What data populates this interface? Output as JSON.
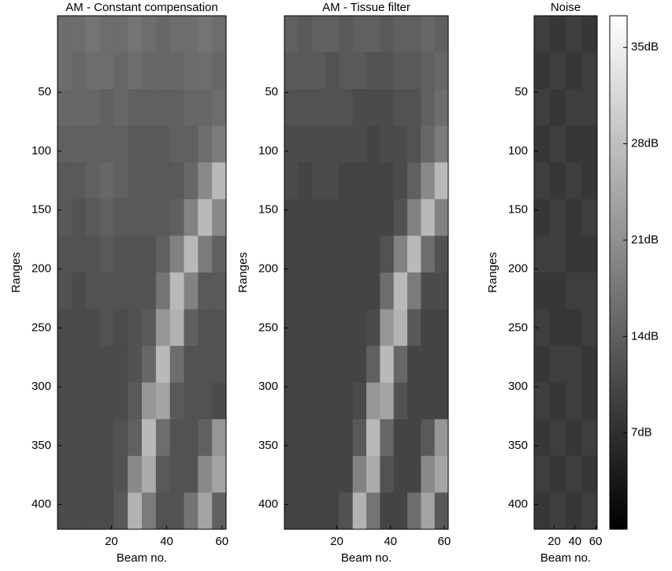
{
  "chart_data": [
    {
      "type": "heatmap",
      "title": "AM - Constant compensation",
      "xlabel": "Beam no.",
      "ylabel": "Ranges",
      "xlim": [
        0.5,
        61.5
      ],
      "ylim": [
        -15,
        421
      ],
      "y_reversed": true,
      "xticks": [
        20,
        40,
        60
      ],
      "yticks": [
        50,
        100,
        150,
        200,
        250,
        300,
        350,
        400
      ],
      "colormap": "gray",
      "clim": [
        0,
        37.3
      ],
      "z": [
        [
          16,
          16,
          17,
          16,
          16,
          17,
          16,
          15,
          16,
          16,
          17,
          16
        ],
        [
          16,
          15,
          16,
          16,
          15,
          16,
          15,
          15,
          15,
          16,
          16,
          15
        ],
        [
          15,
          15,
          15,
          14,
          15,
          14,
          14,
          14,
          14,
          15,
          15,
          16
        ],
        [
          14,
          14,
          14,
          14,
          14,
          13,
          13,
          13,
          14,
          14,
          16,
          18
        ],
        [
          13,
          13,
          14,
          15,
          14,
          13,
          13,
          13,
          13,
          15,
          20,
          27
        ],
        [
          13,
          12,
          13,
          14,
          13,
          13,
          13,
          13,
          14,
          19,
          27,
          20
        ],
        [
          12,
          12,
          12,
          13,
          12,
          12,
          12,
          14,
          19,
          27,
          18,
          14
        ],
        [
          12,
          11,
          12,
          12,
          12,
          12,
          12,
          17,
          27,
          19,
          13,
          13
        ],
        [
          11,
          11,
          11,
          12,
          11,
          12,
          13,
          22,
          26,
          14,
          12,
          12
        ],
        [
          11,
          11,
          11,
          11,
          11,
          12,
          15,
          27,
          16,
          12,
          12,
          12
        ],
        [
          11,
          11,
          11,
          11,
          11,
          13,
          22,
          24,
          13,
          12,
          12,
          11
        ],
        [
          11,
          11,
          11,
          11,
          12,
          14,
          27,
          16,
          12,
          12,
          14,
          22
        ],
        [
          11,
          11,
          11,
          11,
          12,
          20,
          25,
          13,
          12,
          12,
          20,
          24
        ],
        [
          11,
          11,
          11,
          11,
          13,
          26,
          18,
          12,
          12,
          17,
          24,
          14
        ]
      ]
    },
    {
      "type": "heatmap",
      "title": "AM - Tissue filter",
      "xlabel": "Beam no.",
      "ylabel": "Ranges",
      "xlim": [
        0.5,
        61.5
      ],
      "ylim": [
        -15,
        421
      ],
      "y_reversed": true,
      "xticks": [
        20,
        40,
        60
      ],
      "yticks": [
        50,
        100,
        150,
        200,
        250,
        300,
        350,
        400
      ],
      "colormap": "gray",
      "clim": [
        0,
        37.3
      ],
      "z": [
        [
          14,
          13,
          14,
          14,
          13,
          14,
          14,
          13,
          14,
          14,
          15,
          14
        ],
        [
          13,
          13,
          13,
          12,
          13,
          13,
          12,
          12,
          13,
          13,
          14,
          15
        ],
        [
          12,
          12,
          12,
          12,
          12,
          11,
          11,
          11,
          12,
          12,
          14,
          16
        ],
        [
          11,
          11,
          11,
          11,
          11,
          11,
          10,
          11,
          11,
          12,
          15,
          18
        ],
        [
          11,
          10,
          11,
          11,
          10,
          10,
          10,
          10,
          11,
          14,
          20,
          27
        ],
        [
          10,
          10,
          10,
          10,
          10,
          10,
          10,
          10,
          12,
          19,
          27,
          19
        ],
        [
          10,
          10,
          10,
          10,
          10,
          10,
          10,
          12,
          19,
          27,
          16,
          12
        ],
        [
          10,
          10,
          10,
          10,
          10,
          10,
          10,
          16,
          27,
          18,
          11,
          11
        ],
        [
          10,
          10,
          10,
          10,
          10,
          10,
          11,
          22,
          26,
          13,
          10,
          10
        ],
        [
          10,
          10,
          10,
          10,
          10,
          10,
          14,
          27,
          15,
          10,
          10,
          10
        ],
        [
          10,
          10,
          10,
          10,
          10,
          11,
          22,
          24,
          12,
          10,
          10,
          10
        ],
        [
          10,
          10,
          10,
          10,
          10,
          13,
          27,
          15,
          10,
          10,
          13,
          22
        ],
        [
          10,
          10,
          10,
          10,
          10,
          19,
          25,
          12,
          10,
          10,
          20,
          24
        ],
        [
          10,
          10,
          10,
          10,
          12,
          26,
          17,
          10,
          10,
          16,
          24,
          13
        ]
      ]
    },
    {
      "type": "heatmap",
      "title": "Noise",
      "xlabel": "Beam no.",
      "ylabel": "Ranges",
      "xlim": [
        0.5,
        61.5
      ],
      "ylim": [
        -15,
        421
      ],
      "y_reversed": true,
      "xticks": [
        20,
        40,
        60
      ],
      "yticks": [
        50,
        100,
        150,
        200,
        250,
        300,
        350,
        400
      ],
      "colormap": "gray",
      "clim": [
        0,
        37.3
      ],
      "z": [
        [
          9,
          8,
          9,
          8
        ],
        [
          8,
          9,
          8,
          9
        ],
        [
          9,
          8,
          9,
          9
        ],
        [
          8,
          9,
          8,
          8
        ],
        [
          9,
          8,
          9,
          8
        ],
        [
          8,
          9,
          8,
          9
        ],
        [
          9,
          9,
          8,
          8
        ],
        [
          8,
          8,
          9,
          9
        ],
        [
          9,
          8,
          8,
          9
        ],
        [
          8,
          9,
          9,
          8
        ],
        [
          9,
          8,
          9,
          8
        ],
        [
          8,
          9,
          8,
          9
        ],
        [
          9,
          8,
          9,
          8
        ],
        [
          8,
          9,
          8,
          9
        ]
      ],
      "colorbar": {
        "clim": [
          0,
          37.3
        ],
        "ticks": [
          {
            "value": 7,
            "label": "7dB"
          },
          {
            "value": 14,
            "label": "14dB"
          },
          {
            "value": 21,
            "label": "21dB"
          },
          {
            "value": 28,
            "label": "28dB"
          },
          {
            "value": 35,
            "label": "35dB"
          }
        ]
      }
    }
  ]
}
